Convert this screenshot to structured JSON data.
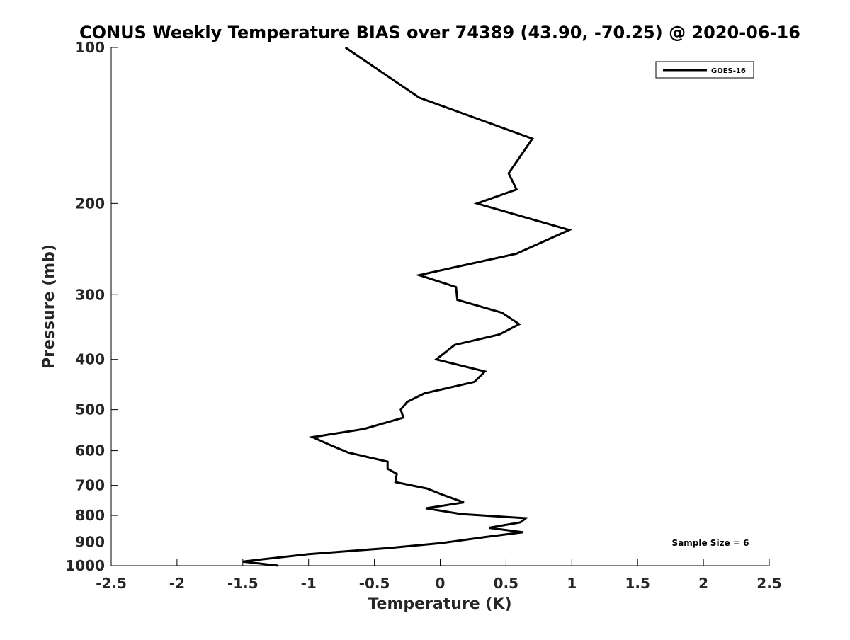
{
  "chart_data": {
    "type": "line",
    "title": "CONUS Weekly Temperature BIAS over 74389 (43.90, -70.25) @ 2020-06-16",
    "xlabel": "Temperature (K)",
    "ylabel": "Pressure (mb)",
    "xlim": [
      -2.5,
      2.5
    ],
    "ylim": [
      1000,
      100
    ],
    "y_scale": "log",
    "y_reversed": true,
    "x_ticks": [
      -2.5,
      -2,
      -1.5,
      -1,
      -0.5,
      0,
      0.5,
      1,
      1.5,
      2,
      2.5
    ],
    "x_tick_labels": [
      "-2.5",
      "-2",
      "-1.5",
      "-1",
      "-0.5",
      "0",
      "0.5",
      "1",
      "1.5",
      "2",
      "2.5"
    ],
    "y_ticks": [
      100,
      200,
      300,
      400,
      500,
      600,
      700,
      800,
      900,
      1000
    ],
    "y_tick_labels": [
      "100",
      "200",
      "300",
      "400",
      "500",
      "600",
      "700",
      "800",
      "900",
      "1000"
    ],
    "grid": false,
    "legend_position": "top-right",
    "annotation": "Sample Size = 6",
    "series": [
      {
        "name": "GOES-16",
        "color": "#000000",
        "points": [
          {
            "x": -0.72,
            "y": 100
          },
          {
            "x": -0.16,
            "y": 125
          },
          {
            "x": 0.7,
            "y": 150
          },
          {
            "x": 0.52,
            "y": 175
          },
          {
            "x": 0.58,
            "y": 188
          },
          {
            "x": 0.28,
            "y": 200
          },
          {
            "x": 0.98,
            "y": 225
          },
          {
            "x": 0.58,
            "y": 250
          },
          {
            "x": -0.16,
            "y": 275
          },
          {
            "x": 0.12,
            "y": 290
          },
          {
            "x": 0.13,
            "y": 307
          },
          {
            "x": 0.47,
            "y": 325
          },
          {
            "x": 0.6,
            "y": 342
          },
          {
            "x": 0.45,
            "y": 358
          },
          {
            "x": 0.11,
            "y": 375
          },
          {
            "x": -0.03,
            "y": 400
          },
          {
            "x": 0.34,
            "y": 422
          },
          {
            "x": 0.26,
            "y": 442
          },
          {
            "x": -0.12,
            "y": 465
          },
          {
            "x": -0.25,
            "y": 483
          },
          {
            "x": -0.3,
            "y": 500
          },
          {
            "x": -0.28,
            "y": 518
          },
          {
            "x": -0.58,
            "y": 545
          },
          {
            "x": -0.97,
            "y": 565
          },
          {
            "x": -0.85,
            "y": 583
          },
          {
            "x": -0.7,
            "y": 605
          },
          {
            "x": -0.4,
            "y": 630
          },
          {
            "x": -0.4,
            "y": 650
          },
          {
            "x": -0.33,
            "y": 665
          },
          {
            "x": -0.34,
            "y": 690
          },
          {
            "x": -0.1,
            "y": 710
          },
          {
            "x": 0.02,
            "y": 730
          },
          {
            "x": 0.18,
            "y": 755
          },
          {
            "x": -0.11,
            "y": 775
          },
          {
            "x": 0.16,
            "y": 795
          },
          {
            "x": 0.65,
            "y": 810
          },
          {
            "x": 0.61,
            "y": 825
          },
          {
            "x": 0.37,
            "y": 845
          },
          {
            "x": 0.63,
            "y": 862
          },
          {
            "x": 0.35,
            "y": 880
          },
          {
            "x": 0.0,
            "y": 905
          },
          {
            "x": -0.4,
            "y": 925
          },
          {
            "x": -1.0,
            "y": 950
          },
          {
            "x": -1.5,
            "y": 982
          },
          {
            "x": -1.23,
            "y": 1000
          }
        ]
      }
    ]
  }
}
